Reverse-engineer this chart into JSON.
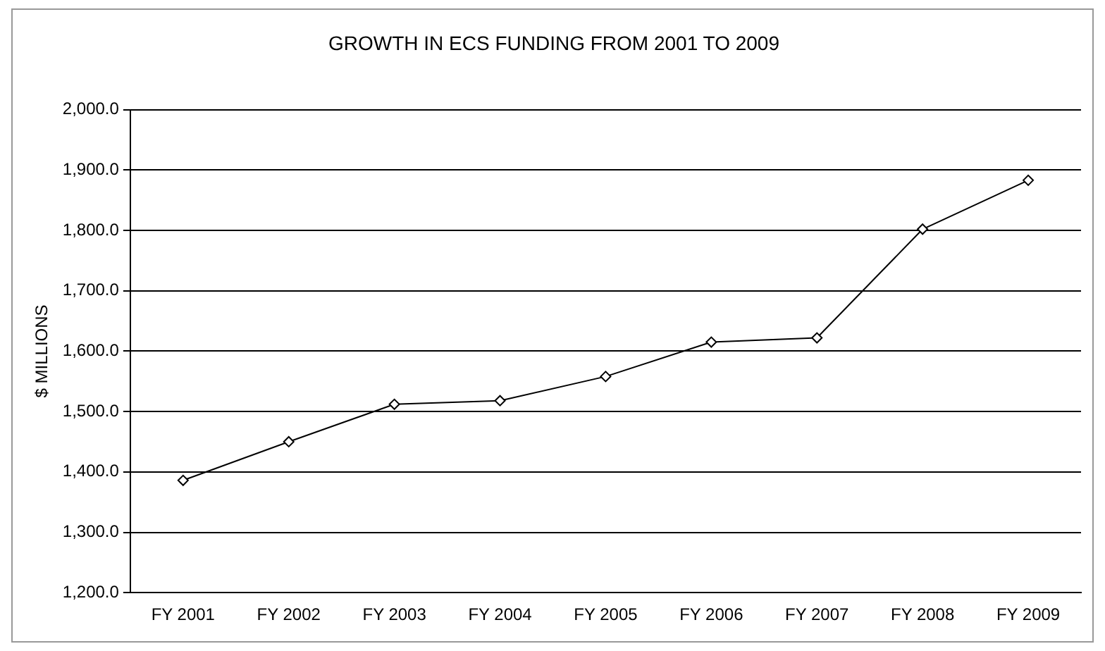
{
  "chart_data": {
    "type": "line",
    "title": "GROWTH IN ECS FUNDING FROM 2001 TO 2009",
    "ylabel": "$ MILLIONS",
    "categories": [
      "FY 2001",
      "FY 2002",
      "FY 2003",
      "FY 2004",
      "FY 2005",
      "FY 2006",
      "FY 2007",
      "FY 2008",
      "FY 2009"
    ],
    "series": [
      {
        "color": "#000000",
        "values": [
          1386,
          1450,
          1512,
          1518,
          1558,
          1615,
          1622,
          1802,
          1883
        ]
      }
    ],
    "ylim": [
      1200,
      2000
    ],
    "yticks": [
      {
        "value": 1200,
        "label": "1,200.0"
      },
      {
        "value": 1300,
        "label": "1,300.0"
      },
      {
        "value": 1400,
        "label": "1,400.0"
      },
      {
        "value": 1500,
        "label": "1,500.0"
      },
      {
        "value": 1600,
        "label": "1,600.0"
      },
      {
        "value": 1700,
        "label": "1,700.0"
      },
      {
        "value": 1800,
        "label": "1,800.0"
      },
      {
        "value": 1900,
        "label": "1,900.0"
      },
      {
        "value": 2000,
        "label": "2,000.0"
      }
    ],
    "grid": "y",
    "legend": false,
    "marker": "diamond",
    "line_style": "solid"
  }
}
